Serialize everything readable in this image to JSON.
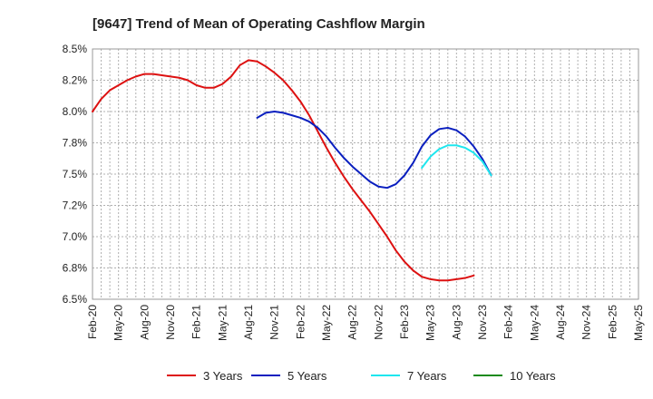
{
  "chart_data": {
    "type": "line",
    "title": "[9647]  Trend of Mean of Operating Cashflow Margin",
    "xlabel": "",
    "ylabel": "",
    "ylim": [
      6.5,
      8.5
    ],
    "y_ticks": [
      6.5,
      6.75,
      7.0,
      7.25,
      7.5,
      7.75,
      8.0,
      8.25,
      8.5
    ],
    "y_tick_labels": [
      "6.5%",
      "6.8%",
      "7.0%",
      "7.2%",
      "7.5%",
      "7.8%",
      "8.0%",
      "8.2%",
      "8.5%"
    ],
    "x_tick_labels": [
      "Feb-20",
      "May-20",
      "Aug-20",
      "Nov-20",
      "Feb-21",
      "May-21",
      "Aug-21",
      "Nov-21",
      "Feb-22",
      "May-22",
      "Aug-22",
      "Nov-22",
      "Feb-23",
      "May-23",
      "Aug-23",
      "Nov-23",
      "Feb-24",
      "May-24",
      "Aug-24",
      "Nov-24",
      "Feb-25",
      "May-25"
    ],
    "grid": true,
    "legend_position": "bottom",
    "series": [
      {
        "name": "3 Years",
        "color": "#dd1111",
        "values": [
          8.0,
          8.1,
          8.17,
          8.21,
          8.25,
          8.28,
          8.3,
          8.3,
          8.29,
          8.28,
          8.27,
          8.25,
          8.21,
          8.19,
          8.19,
          8.22,
          8.28,
          8.37,
          8.41,
          8.4,
          8.36,
          8.31,
          8.25,
          8.17,
          8.08,
          7.97,
          7.84,
          7.71,
          7.59,
          7.48,
          7.38,
          7.29,
          7.2,
          7.1,
          7.0,
          6.89,
          6.8,
          6.73,
          6.68,
          6.66,
          6.65,
          6.65,
          6.66,
          6.67,
          6.69
        ]
      },
      {
        "name": "5 Years",
        "color": "#0a1fbf",
        "values": [
          null,
          null,
          null,
          null,
          null,
          null,
          null,
          null,
          null,
          null,
          null,
          null,
          null,
          null,
          null,
          null,
          null,
          null,
          null,
          7.95,
          7.99,
          8.0,
          7.99,
          7.97,
          7.95,
          7.92,
          7.87,
          7.8,
          7.71,
          7.63,
          7.56,
          7.5,
          7.44,
          7.4,
          7.39,
          7.42,
          7.49,
          7.59,
          7.72,
          7.81,
          7.86,
          7.87,
          7.85,
          7.8,
          7.72,
          7.62,
          7.49
        ]
      },
      {
        "name": "7 Years",
        "color": "#1ee6ee",
        "values": [
          null,
          null,
          null,
          null,
          null,
          null,
          null,
          null,
          null,
          null,
          null,
          null,
          null,
          null,
          null,
          null,
          null,
          null,
          null,
          null,
          null,
          null,
          null,
          null,
          null,
          null,
          null,
          null,
          null,
          null,
          null,
          null,
          null,
          null,
          null,
          null,
          null,
          null,
          7.55,
          7.64,
          7.7,
          7.73,
          7.73,
          7.71,
          7.67,
          7.6,
          7.49
        ]
      },
      {
        "name": "10 Years",
        "color": "#1a8a1a",
        "values": []
      }
    ]
  }
}
